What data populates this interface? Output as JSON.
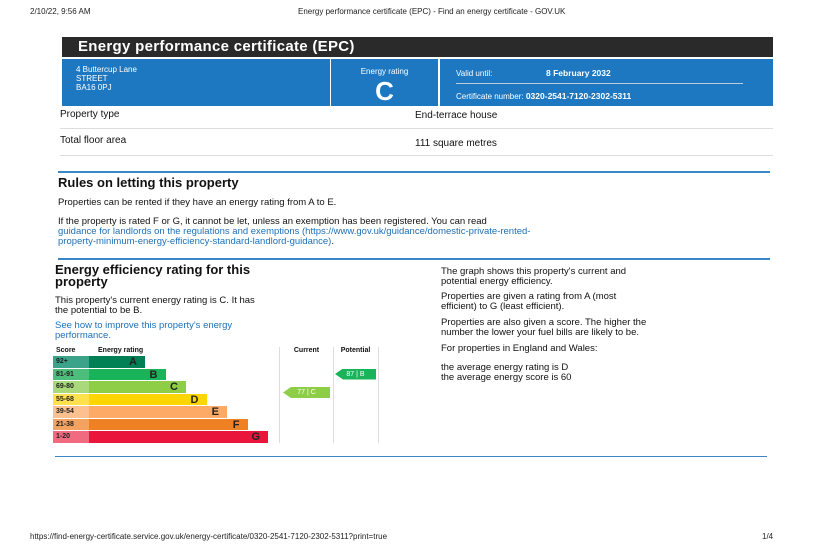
{
  "print_header": {
    "datetime": "2/10/22, 9:56 AM",
    "page_title": "Energy performance certificate (EPC) - Find an energy certificate - GOV.UK"
  },
  "banner_title": "Energy performance certificate (EPC)",
  "address": [
    "4 Buttercup Lane",
    "STREET",
    "BA16 0PJ"
  ],
  "energy_rating": {
    "label": "Energy rating",
    "value": "C"
  },
  "validity": {
    "label": "Valid until:",
    "date": "8 February 2032",
    "cert_label": "Certificate number:",
    "cert_number": "0320-2541-7120-2302-5311"
  },
  "details": [
    {
      "label": "Property type",
      "value": "End-terrace house"
    },
    {
      "label": "Total floor area",
      "value": "111 square metres"
    }
  ],
  "rules": {
    "heading": "Rules on letting this property",
    "p1": "Properties can be rented if they have an energy rating from A to E.",
    "p2": "If the property is rated F or G, it cannot be let, unless an exemption has been registered. You can read",
    "link": "guidance for landlords on the regulations and exemptions",
    "link_url_line1": "(https://www.gov.uk/guidance/domestic-private-rented-",
    "link_url_line2": "property-minimum-energy-efficiency-standard-landlord-guidance)",
    "tail": "."
  },
  "efficiency": {
    "heading_line1": "Energy efficiency rating for this",
    "heading_line2": "property",
    "p1_line1": "This property's current energy rating is C. It has",
    "p1_line2": "the potential to be B.",
    "link_line1": "See how to improve this property's energy",
    "link_line2": "performance."
  },
  "chart": {
    "headers": {
      "score": "Score",
      "rating": "Energy rating",
      "current": "Current",
      "potential": "Potential"
    },
    "bands": [
      {
        "score": "92+",
        "letter": "A",
        "color": "#008054",
        "score_color": "#3aa38a"
      },
      {
        "score": "81-91",
        "letter": "B",
        "color": "#19b459",
        "score_color": "#4dbd7c"
      },
      {
        "score": "69-80",
        "letter": "C",
        "color": "#8dce46",
        "score_color": "#a9d97a"
      },
      {
        "score": "55-68",
        "letter": "D",
        "color": "#ffd500",
        "score_color": "#ffe14d"
      },
      {
        "score": "39-54",
        "letter": "E",
        "color": "#fcaa65",
        "score_color": "#fdc08f"
      },
      {
        "score": "21-38",
        "letter": "F",
        "color": "#ef8023",
        "score_color": "#f3a35f"
      },
      {
        "score": "1-20",
        "letter": "G",
        "color": "#e9153b",
        "score_color": "#f06b80"
      }
    ],
    "current": {
      "label": "77 | C",
      "score": 77,
      "band": 2,
      "color": "#8dce46"
    },
    "potential": {
      "label": "87 | B",
      "score": 87,
      "band": 1,
      "color": "#19b459"
    }
  },
  "explanation": {
    "p1_line1": "The graph shows this property's current and",
    "p1_line2": "potential energy efficiency.",
    "p2_line1": "Properties are given a rating from A (most",
    "p2_line2": "efficient) to G (least efficient).",
    "p3_line1": "Properties are also given a score. The higher the",
    "p3_line2": "number the lower your fuel bills are likely to be.",
    "p4": "For properties in England and Wales:",
    "p5_line1": "the average energy rating is D",
    "p5_line2": "the average energy score is 60"
  },
  "print_footer": {
    "url": "https://find-energy-certificate.service.gov.uk/energy-certificate/0320-2541-7120-2302-5311?print=true",
    "page": "1/4"
  }
}
